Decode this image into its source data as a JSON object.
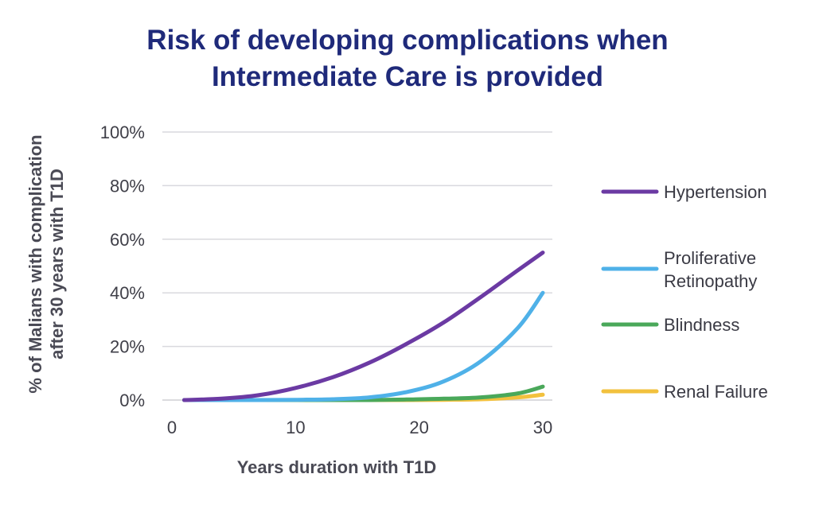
{
  "chart_data": {
    "type": "line",
    "title_line1": "Risk of developing complications when",
    "title_line2": "Intermediate Care is provided",
    "xlabel": "Years duration with T1D",
    "ylabel_line1": "% of Malians with complication",
    "ylabel_line2": "after 30 years with T1D",
    "xlim": [
      0,
      30
    ],
    "ylim": [
      0,
      100
    ],
    "x_ticks": [
      "0",
      "10",
      "20",
      "30"
    ],
    "y_ticks": [
      "0%",
      "20%",
      "40%",
      "60%",
      "80%",
      "100%"
    ],
    "grid": "horizontal",
    "legend_position": "right",
    "x": [
      1,
      4,
      7,
      10,
      13,
      16,
      19,
      22,
      25,
      28,
      30
    ],
    "series": [
      {
        "name": "Hypertension",
        "color": "#6b3aa3",
        "values": [
          0,
          0.5,
          1.8,
          4.5,
          8.5,
          14,
          21,
          29,
          38.5,
          48.5,
          55
        ]
      },
      {
        "name": "Proliferative Retinopathy",
        "color": "#4fb1e8",
        "values": [
          0,
          0,
          0,
          0.1,
          0.3,
          1,
          3,
          7,
          14.5,
          27,
          40
        ]
      },
      {
        "name": "Blindness",
        "color": "#4aa85a",
        "values": [
          0,
          0,
          0,
          0,
          0,
          0,
          0.2,
          0.5,
          1,
          2.5,
          5
        ]
      },
      {
        "name": "Renal Failure",
        "color": "#f2c13d",
        "values": [
          0,
          0,
          0,
          0,
          0,
          0,
          0,
          0.1,
          0.3,
          1,
          2
        ]
      }
    ]
  }
}
